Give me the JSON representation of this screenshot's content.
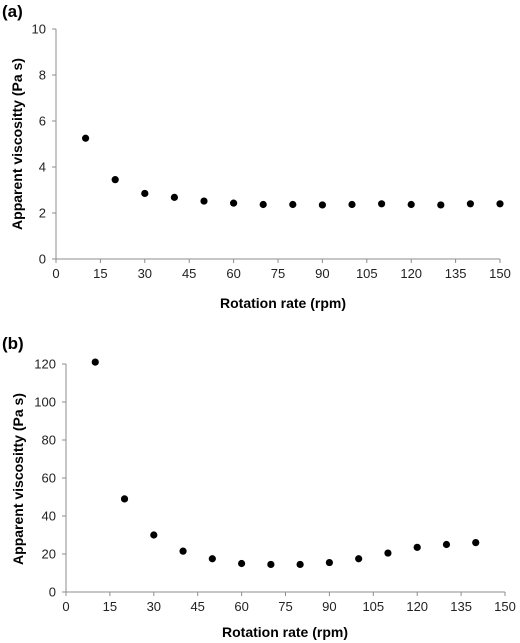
{
  "chart_data": [
    {
      "panel_label": "(a)",
      "type": "scatter",
      "xlabel": "Rotation rate (rpm)",
      "ylabel": "Apparent viscositty (Pa s)",
      "xlim": [
        0,
        150
      ],
      "ylim": [
        0,
        10
      ],
      "x_ticks": [
        0,
        15,
        30,
        45,
        60,
        75,
        90,
        105,
        120,
        135,
        150
      ],
      "y_ticks": [
        0,
        2,
        4,
        6,
        8,
        10
      ],
      "grid": false,
      "x": [
        10,
        20,
        30,
        40,
        50,
        60,
        70,
        80,
        90,
        100,
        110,
        120,
        130,
        140,
        150
      ],
      "y": [
        5.25,
        3.45,
        2.85,
        2.68,
        2.52,
        2.43,
        2.37,
        2.37,
        2.35,
        2.37,
        2.4,
        2.37,
        2.35,
        2.4,
        2.4
      ]
    },
    {
      "panel_label": "(b)",
      "type": "scatter",
      "xlabel": "Rotation rate (rpm)",
      "ylabel": "Apparent viscositty (Pa s)",
      "xlim": [
        0,
        150
      ],
      "ylim": [
        0,
        120
      ],
      "x_ticks": [
        0,
        15,
        30,
        45,
        60,
        75,
        90,
        105,
        120,
        135,
        150
      ],
      "y_ticks": [
        0,
        20,
        40,
        60,
        80,
        100,
        120
      ],
      "grid": false,
      "x": [
        10,
        20,
        30,
        40,
        50,
        60,
        70,
        80,
        90,
        100,
        110,
        120,
        130,
        140
      ],
      "y": [
        121,
        49,
        30,
        21.5,
        17.5,
        15,
        14.5,
        14.5,
        15.5,
        17.5,
        20.5,
        23.5,
        25,
        26
      ]
    }
  ]
}
